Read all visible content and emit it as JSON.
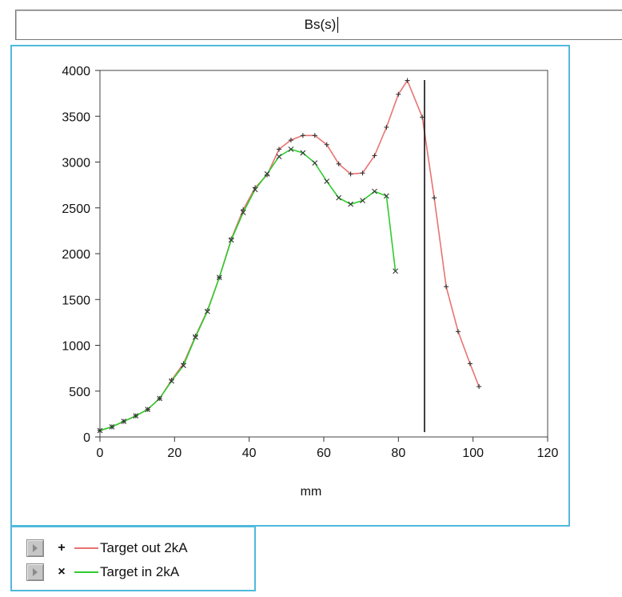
{
  "header": {
    "title": "Bs(s)"
  },
  "chart_data": {
    "type": "line",
    "xlabel": "mm",
    "ylabel": "",
    "xlim": [
      0,
      120
    ],
    "ylim": [
      0,
      4000
    ],
    "x_ticks": [
      0,
      20,
      40,
      60,
      80,
      100,
      120
    ],
    "y_ticks": [
      0,
      500,
      1000,
      1500,
      2000,
      2500,
      3000,
      3500,
      4000
    ],
    "grid": false,
    "cursor_x": 87,
    "series": [
      {
        "name": "Target out 2kA",
        "color": "#e87373",
        "marker": "+",
        "x": [
          0,
          3.2,
          6.4,
          9.6,
          12.8,
          16,
          19.2,
          22.4,
          25.6,
          28.8,
          32,
          35.2,
          38.4,
          41.6,
          44.8,
          48,
          51.2,
          54.4,
          57.6,
          60.8,
          64,
          67.2,
          70.4,
          73.6,
          76.8,
          80,
          82.4,
          86.4,
          89.6,
          92.8,
          96,
          99.2,
          101.6
        ],
        "y": [
          70,
          110,
          170,
          230,
          300,
          420,
          620,
          800,
          1100,
          1380,
          1740,
          2160,
          2480,
          2720,
          2860,
          3140,
          3240,
          3290,
          3290,
          3190,
          2980,
          2870,
          2880,
          3070,
          3380,
          3740,
          3890,
          3490,
          2610,
          1640,
          1150,
          800,
          550
        ]
      },
      {
        "name": "Target in 2kA",
        "color": "#2ecc2e",
        "marker": "x",
        "x": [
          0,
          3.2,
          6.4,
          9.6,
          12.8,
          16,
          19.2,
          22.4,
          25.6,
          28.8,
          32,
          35.2,
          38.4,
          41.6,
          44.8,
          48,
          51.2,
          54.4,
          57.6,
          60.8,
          64,
          67.2,
          70.4,
          73.6,
          76.8,
          79.2
        ],
        "y": [
          70,
          110,
          170,
          230,
          300,
          420,
          610,
          780,
          1090,
          1370,
          1740,
          2150,
          2450,
          2700,
          2870,
          3060,
          3140,
          3100,
          2990,
          2790,
          2610,
          2540,
          2580,
          2680,
          2630,
          1810
        ]
      }
    ]
  }
}
